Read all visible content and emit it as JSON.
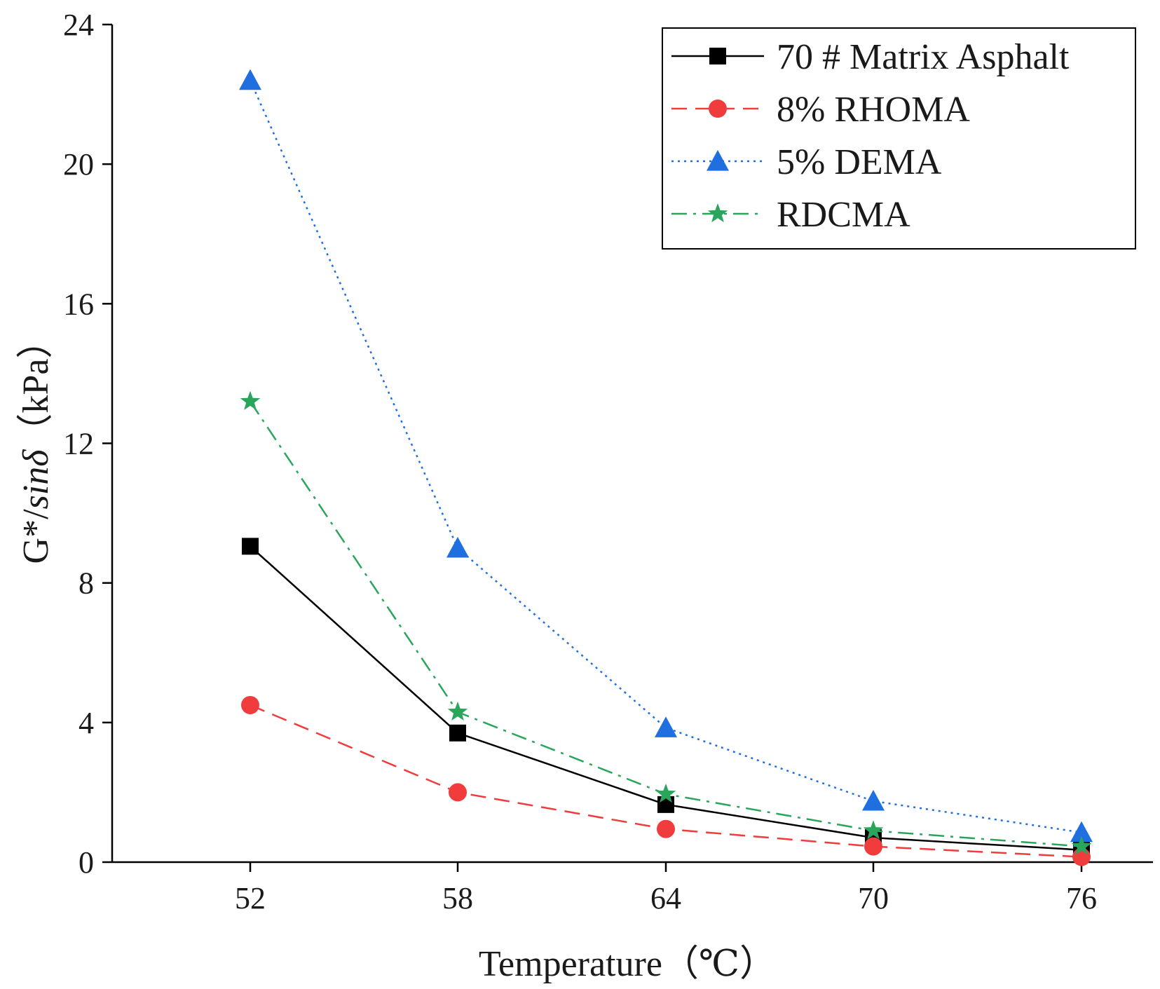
{
  "chart_data": {
    "type": "line",
    "title": "",
    "xlabel": "Temperature（℃）",
    "ylabel": {
      "main": "G*/",
      "italic": "sinδ",
      "unit": "（kPa）"
    },
    "categories": [
      "52",
      "58",
      "64",
      "70",
      "76"
    ],
    "ylim": [
      0,
      24
    ],
    "yticks": [
      0,
      4,
      8,
      12,
      16,
      20,
      24
    ],
    "grid": false,
    "legend_position": "top-right",
    "series": [
      {
        "name": "70 # Matrix Asphalt",
        "values": [
          9.05,
          3.7,
          1.65,
          0.7,
          0.35
        ],
        "color": "#000000",
        "marker": "square",
        "line_style": "solid"
      },
      {
        "name": "8% RHOMA",
        "values": [
          4.5,
          2.0,
          0.95,
          0.45,
          0.15
        ],
        "color": "#f03c3c",
        "marker": "circle",
        "line_style": "dashed"
      },
      {
        "name": "5% DEMA",
        "values": [
          22.4,
          9.0,
          3.85,
          1.75,
          0.85
        ],
        "color": "#1f6fe0",
        "marker": "triangle",
        "line_style": "dotted"
      },
      {
        "name": "RDCMA",
        "values": [
          13.2,
          4.3,
          1.95,
          0.9,
          0.45
        ],
        "color": "#2aa65c",
        "marker": "star",
        "line_style": "dashdot"
      }
    ]
  }
}
